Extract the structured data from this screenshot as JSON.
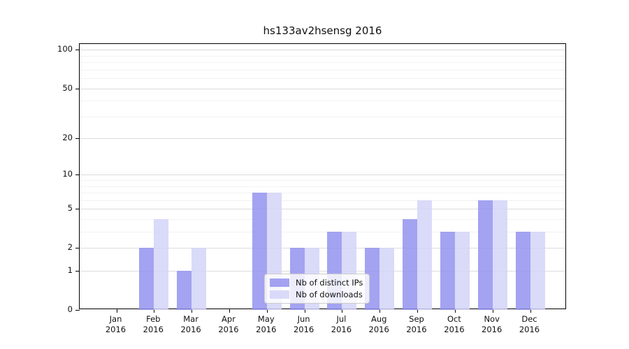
{
  "chart_data": {
    "type": "bar",
    "title": "hs133av2hsensg 2016",
    "categories": [
      "Jan 2016",
      "Feb 2016",
      "Mar 2016",
      "Apr 2016",
      "May 2016",
      "Jun 2016",
      "Jul 2016",
      "Aug 2016",
      "Sep 2016",
      "Oct 2016",
      "Nov 2016",
      "Dec 2016"
    ],
    "x_tick_labels": [
      [
        "Jan",
        "2016"
      ],
      [
        "Feb",
        "2016"
      ],
      [
        "Mar",
        "2016"
      ],
      [
        "Apr",
        "2016"
      ],
      [
        "May",
        "2016"
      ],
      [
        "Jun",
        "2016"
      ],
      [
        "Jul",
        "2016"
      ],
      [
        "Aug",
        "2016"
      ],
      [
        "Sep",
        "2016"
      ],
      [
        "Oct",
        "2016"
      ],
      [
        "Nov",
        "2016"
      ],
      [
        "Dec",
        "2016"
      ]
    ],
    "series": [
      {
        "name": "Nb of distinct IPs",
        "color": "rgba(147,147,239,0.85)",
        "values": [
          0,
          2,
          1,
          0,
          7,
          2,
          3,
          2,
          4,
          3,
          6,
          3
        ]
      },
      {
        "name": "Nb of downloads",
        "color": "rgba(212,212,248,0.85)",
        "values": [
          0,
          4,
          2,
          0,
          7,
          2,
          3,
          2,
          6,
          3,
          6,
          3
        ]
      }
    ],
    "yscale": "log1p",
    "ylabel": "",
    "xlabel": "",
    "ylim": [
      0,
      111
    ],
    "y_ticks_major": [
      0,
      1,
      2,
      5,
      10,
      20,
      50,
      100
    ],
    "y_ticks_minor": [
      3,
      4,
      6,
      7,
      8,
      9,
      30,
      40,
      60,
      70,
      80,
      90
    ],
    "grid": true,
    "legend_position": "lower center",
    "colors": {
      "grid_major": "#dcdcdc",
      "grid_minor": "#f2f2f2",
      "axis": "#000000",
      "background": "#ffffff"
    }
  }
}
